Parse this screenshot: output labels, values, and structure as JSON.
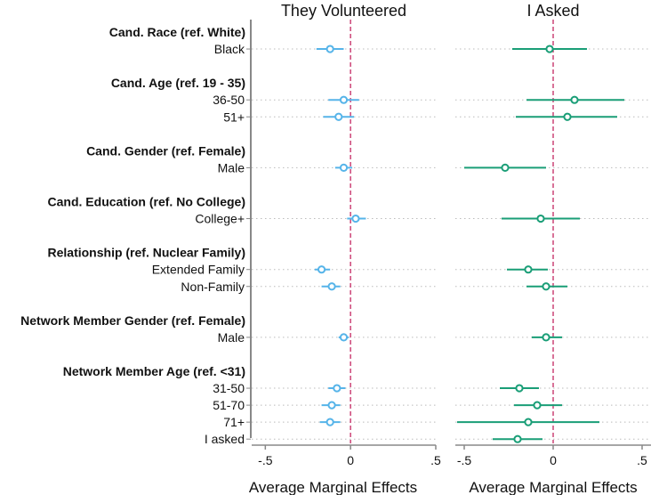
{
  "chart_data": {
    "type": "scatter",
    "subtype": "coefficient-plot",
    "y_axis": {
      "groups": [
        {
          "header": "Cand. Race (ref. White)",
          "rows": [
            "Black"
          ]
        },
        {
          "header": "Cand. Age (ref. 19 - 35)",
          "rows": [
            "36-50",
            "51+"
          ]
        },
        {
          "header": "Cand. Gender (ref. Female)",
          "rows": [
            "Male"
          ]
        },
        {
          "header": "Cand. Education (ref. No College)",
          "rows": [
            "College+"
          ]
        },
        {
          "header": "Relationship (ref. Nuclear Family)",
          "rows": [
            "Extended Family",
            "Non-Family"
          ]
        },
        {
          "header": "Network Member Gender (ref. Female)",
          "rows": [
            "Male"
          ]
        },
        {
          "header": "Network Member Age (ref. <31)",
          "rows": [
            "31-50",
            "51-70",
            "71+",
            "I asked"
          ]
        }
      ]
    },
    "panels": [
      {
        "title": "They Volunteered",
        "xlabel": "Average Marginal Effects",
        "xlim": [
          -0.58,
          0.5
        ],
        "xticks": [
          -0.5,
          0,
          0.5
        ],
        "xtick_labels": [
          "-.5",
          "0",
          ".5"
        ],
        "color": "#56b4e9",
        "points": [
          {
            "row": "Black",
            "est": -0.12,
            "lo": -0.2,
            "hi": -0.04
          },
          {
            "row": "36-50",
            "est": -0.04,
            "lo": -0.13,
            "hi": 0.05
          },
          {
            "row": "51+",
            "est": -0.07,
            "lo": -0.16,
            "hi": 0.02
          },
          {
            "row": "Male",
            "est": -0.04,
            "lo": -0.09,
            "hi": 0.01
          },
          {
            "row": "College+",
            "est": 0.03,
            "lo": -0.02,
            "hi": 0.09
          },
          {
            "row": "Extended Family",
            "est": -0.17,
            "lo": -0.21,
            "hi": -0.12
          },
          {
            "row": "Non-Family",
            "est": -0.11,
            "lo": -0.17,
            "hi": -0.06
          },
          {
            "row": "Male",
            "est": -0.04,
            "lo": -0.07,
            "hi": -0.01
          },
          {
            "row": "31-50",
            "est": -0.08,
            "lo": -0.13,
            "hi": -0.03
          },
          {
            "row": "51-70",
            "est": -0.11,
            "lo": -0.17,
            "hi": -0.06
          },
          {
            "row": "71+",
            "est": -0.12,
            "lo": -0.18,
            "hi": -0.06
          },
          {
            "row": "I asked",
            "est": null,
            "lo": null,
            "hi": null
          }
        ]
      },
      {
        "title": "I Asked",
        "xlabel": "Average Marginal Effects",
        "xlim": [
          -0.55,
          0.55
        ],
        "xticks": [
          -0.5,
          0,
          0.5
        ],
        "xtick_labels": [
          "-.5",
          "0",
          ".5"
        ],
        "color": "#1a9e77",
        "points": [
          {
            "row": "Black",
            "est": -0.02,
            "lo": -0.23,
            "hi": 0.19
          },
          {
            "row": "36-50",
            "est": 0.12,
            "lo": -0.15,
            "hi": 0.4
          },
          {
            "row": "51+",
            "est": 0.08,
            "lo": -0.21,
            "hi": 0.36
          },
          {
            "row": "Male",
            "est": -0.27,
            "lo": -0.5,
            "hi": -0.04
          },
          {
            "row": "College+",
            "est": -0.07,
            "lo": -0.29,
            "hi": 0.15
          },
          {
            "row": "Extended Family",
            "est": -0.14,
            "lo": -0.26,
            "hi": -0.03
          },
          {
            "row": "Non-Family",
            "est": -0.04,
            "lo": -0.15,
            "hi": 0.08
          },
          {
            "row": "Male",
            "est": -0.04,
            "lo": -0.12,
            "hi": 0.05
          },
          {
            "row": "31-50",
            "est": -0.19,
            "lo": -0.3,
            "hi": -0.08
          },
          {
            "row": "51-70",
            "est": -0.09,
            "lo": -0.22,
            "hi": 0.05
          },
          {
            "row": "71+",
            "est": -0.14,
            "lo": -0.54,
            "hi": 0.26
          },
          {
            "row": "I asked",
            "est": -0.2,
            "lo": -0.34,
            "hi": -0.06
          }
        ]
      }
    ],
    "reference_line": {
      "x": 0,
      "color": "#cc4477",
      "style": "dashed"
    },
    "grid": "horizontal dotted"
  }
}
